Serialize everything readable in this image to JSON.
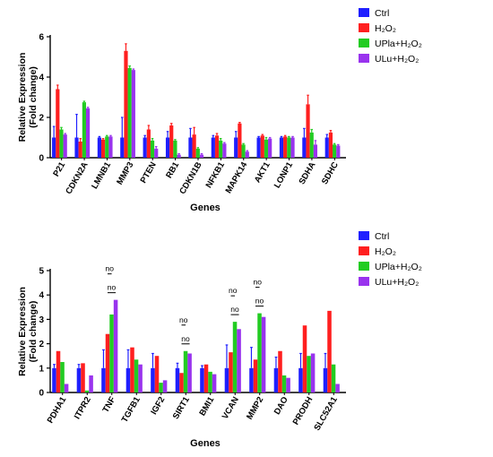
{
  "chart_data": [
    {
      "type": "bar",
      "xlabel": "Genes",
      "ylabel": [
        "Relative Expression",
        "(Fold change)"
      ],
      "ylim": [
        0,
        6
      ],
      "yticks": [
        0,
        2,
        4,
        6
      ],
      "legend_position": "top-right",
      "categories": [
        "P21",
        "CDKN2A",
        "LMNB1",
        "MMP3",
        "PTEN",
        "RB1",
        "CDKN1B",
        "NFKB1",
        "MAPK14",
        "AKT1",
        "LONP1",
        "SDHA",
        "SDHC"
      ],
      "series": [
        {
          "name": "Ctrl",
          "color": "#1f1fff",
          "values": [
            1.0,
            1.0,
            1.0,
            1.0,
            1.0,
            1.0,
            1.0,
            1.0,
            1.0,
            1.0,
            1.0,
            1.0,
            1.0
          ],
          "errors": [
            0.55,
            1.15,
            0.05,
            1.0,
            0.1,
            0.3,
            0.45,
            0.1,
            0.3,
            0.05,
            0.05,
            0.45,
            0.15
          ]
        },
        {
          "name": "H₂O₂",
          "color": "#ff1f1f",
          "values": [
            3.4,
            0.8,
            0.9,
            5.3,
            1.4,
            1.6,
            1.15,
            1.1,
            1.7,
            1.1,
            1.05,
            2.65,
            1.25
          ],
          "errors": [
            0.2,
            0.15,
            0.05,
            0.35,
            0.2,
            0.1,
            0.35,
            0.1,
            0.05,
            0.05,
            0.05,
            0.45,
            0.1
          ]
        },
        {
          "name": "UPla+H₂O₂",
          "color": "#22cc22",
          "values": [
            1.4,
            2.75,
            1.05,
            4.45,
            0.85,
            0.85,
            0.45,
            0.85,
            0.65,
            0.9,
            1.0,
            1.25,
            0.65
          ],
          "errors": [
            0.1,
            0.05,
            0.05,
            0.1,
            0.1,
            0.05,
            0.05,
            0.1,
            0.05,
            0.1,
            0.05,
            0.15,
            0.05
          ]
        },
        {
          "name": "ULu+H₂O₂",
          "color": "#9933ee",
          "values": [
            1.15,
            2.45,
            1.05,
            4.35,
            0.45,
            0.15,
            0.15,
            0.7,
            0.3,
            0.95,
            1.0,
            0.65,
            0.6
          ],
          "errors": [
            0.05,
            0.05,
            0.05,
            0.05,
            0.1,
            0.05,
            0.05,
            0.05,
            0.05,
            0.05,
            0.05,
            0.2,
            0.05
          ]
        }
      ],
      "annotations": []
    },
    {
      "type": "bar",
      "xlabel": "Genes",
      "ylabel": [
        "Relative Expression",
        "(Fold change)"
      ],
      "ylim": [
        0,
        5
      ],
      "yticks": [
        0,
        1,
        2,
        3,
        4,
        5
      ],
      "legend_position": "top-right",
      "categories": [
        "PDHA1",
        "ITPR2",
        "TNF",
        "TGFB1",
        "IGF2",
        "SIRT1",
        "BMI1",
        "VCAN",
        "MMP2",
        "DAO",
        "PRODH",
        "SLC52A1"
      ],
      "series": [
        {
          "name": "Ctrl",
          "color": "#1f1fff",
          "values": [
            1.0,
            1.0,
            1.0,
            1.0,
            1.0,
            1.0,
            1.0,
            1.0,
            1.0,
            1.0,
            1.0,
            1.0
          ],
          "errors": [
            0.15,
            0.15,
            0.75,
            0.75,
            0.6,
            0.2,
            0.1,
            0.95,
            0.85,
            0.45,
            0.6,
            0.6
          ]
        },
        {
          "name": "H₂O₂",
          "color": "#ff1f1f",
          "values": [
            1.7,
            1.2,
            2.4,
            1.85,
            1.5,
            0.8,
            1.15,
            1.65,
            1.35,
            1.7,
            2.75,
            3.35
          ]
        },
        {
          "name": "UPla+H₂O₂",
          "color": "#22cc22",
          "values": [
            1.25,
            0.08,
            3.2,
            1.35,
            0.4,
            1.7,
            0.85,
            2.9,
            3.25,
            0.7,
            1.5,
            1.15
          ]
        },
        {
          "name": "ULu+H₂O₂",
          "color": "#9933ee",
          "values": [
            0.35,
            0.7,
            3.8,
            1.15,
            0.5,
            1.6,
            0.75,
            2.6,
            3.1,
            0.6,
            1.6,
            0.35
          ]
        }
      ],
      "annotations": [
        {
          "label": "no",
          "category": "TNF",
          "from_series": 1,
          "to_series": 3
        },
        {
          "label": "no",
          "category": "TNF",
          "from_series": 1,
          "to_series": 2
        },
        {
          "label": "no",
          "category": "SIRT1",
          "from_series": 1,
          "to_series": 3
        },
        {
          "label": "no",
          "category": "SIRT1",
          "from_series": 1,
          "to_series": 2
        },
        {
          "label": "no",
          "category": "VCAN",
          "from_series": 1,
          "to_series": 3
        },
        {
          "label": "no",
          "category": "VCAN",
          "from_series": 1,
          "to_series": 2
        },
        {
          "label": "no",
          "category": "MMP2",
          "from_series": 1,
          "to_series": 3
        },
        {
          "label": "no",
          "category": "MMP2",
          "from_series": 1,
          "to_series": 2
        }
      ]
    }
  ]
}
